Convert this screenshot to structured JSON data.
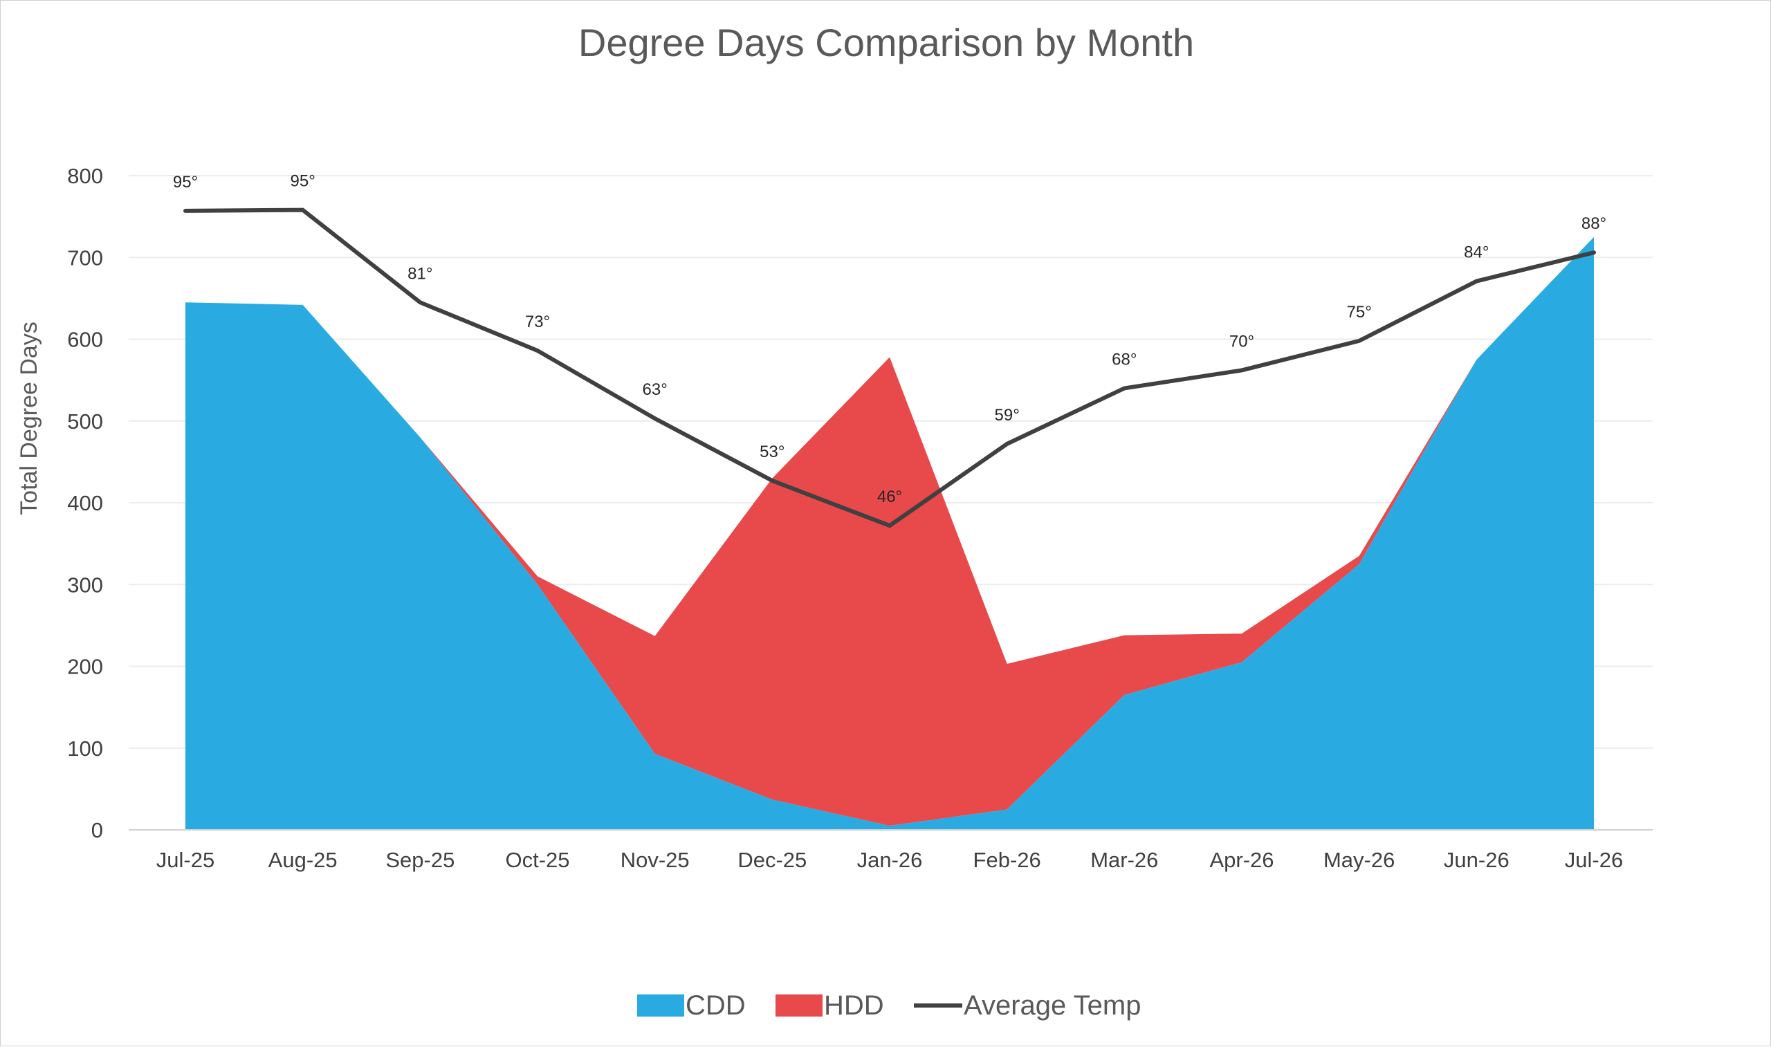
{
  "chart_data": {
    "type": "area",
    "title": "Degree Days Comparison by Month",
    "ylabel": "Total Degree Days",
    "xlabel": "",
    "ylim": [
      0,
      800
    ],
    "yticks": [
      "0",
      "100",
      "200",
      "300",
      "400",
      "500",
      "600",
      "700",
      "800"
    ],
    "categories": [
      "Jul-25",
      "Aug-25",
      "Sep-25",
      "Oct-25",
      "Nov-25",
      "Dec-25",
      "Jan-26",
      "Feb-26",
      "Mar-26",
      "Apr-26",
      "May-26",
      "Jun-26",
      "Jul-26"
    ],
    "series": [
      {
        "name": "CDD",
        "type": "stacked-area",
        "color": "#29abe2",
        "values": [
          645,
          642,
          480,
          300,
          93,
          37,
          5,
          25,
          165,
          205,
          325,
          575,
          725
        ]
      },
      {
        "name": "HDD",
        "type": "stacked-area",
        "color": "#e8494b",
        "values": [
          0,
          0,
          0,
          10,
          144,
          393,
          573,
          178,
          73,
          35,
          10,
          0,
          0
        ]
      },
      {
        "name": "Average Temp",
        "type": "line",
        "color": "#404040",
        "values": [
          757,
          758,
          645,
          586,
          503,
          427,
          372,
          472,
          540,
          562,
          598,
          671,
          706
        ],
        "labels": [
          "95°",
          "95°",
          "81°",
          "73°",
          "63°",
          "53°",
          "46°",
          "59°",
          "68°",
          "70°",
          "75°",
          "84°",
          "88°"
        ]
      }
    ],
    "grid": true,
    "legend_position": "bottom"
  }
}
